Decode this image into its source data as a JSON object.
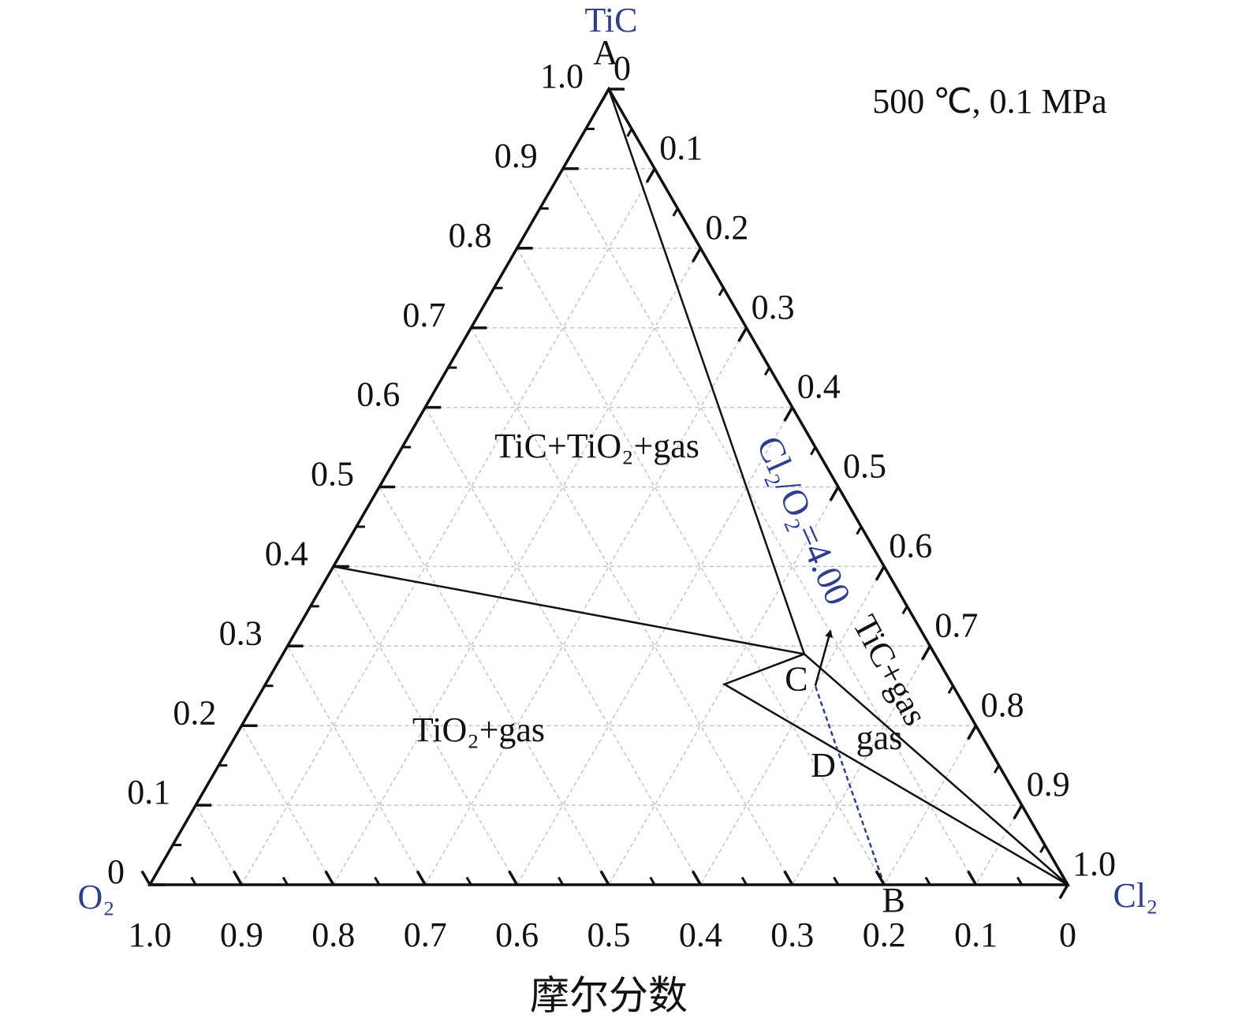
{
  "chart_data": {
    "type": "ternary",
    "annotation": "500 ℃, 0.1 MPa",
    "axis_title": "摩尔分数",
    "vertices": [
      {
        "label": "TiC",
        "ticks": [
          0,
          0.1,
          0.2,
          0.3,
          0.4,
          0.5,
          0.6,
          0.7,
          0.8,
          0.9,
          {
            "value": 1,
            "label": "1.0"
          }
        ]
      },
      {
        "label": "O₂",
        "ticks": [
          {
            "value": 1,
            "label": "1.0"
          },
          0.9,
          0.8,
          0.7,
          0.6,
          0.5,
          0.4,
          0.3,
          0.2,
          0.1,
          0
        ]
      },
      {
        "label": "Cl₂",
        "ticks": [
          0,
          0.1,
          0.2,
          0.3,
          0.4,
          0.5,
          0.6,
          0.7,
          0.8,
          0.9,
          {
            "value": 1,
            "label": "1.0"
          }
        ]
      }
    ],
    "grid": true,
    "points": [
      {
        "label": "A",
        "at": [
          1,
          0,
          0
        ]
      },
      {
        "label": "B",
        "at": [
          0,
          0.2,
          0.8
        ]
      },
      {
        "label": "C",
        "at": [
          0.29,
          0.142,
          0.568
        ]
      },
      {
        "label": "D",
        "at": [
          0.146,
          0.171,
          0.683
        ]
      }
    ],
    "boundaries": [
      {
        "color": "#111111",
        "points": [
          [
            1,
            0,
            0
          ],
          [
            0.29,
            0.142,
            0.568
          ]
        ]
      },
      {
        "color": "#111111",
        "points": [
          [
            0.4,
            0.6,
            0
          ],
          [
            0.29,
            0.142,
            0.568
          ],
          [
            0,
            0,
            1
          ]
        ]
      },
      {
        "color": "#111111",
        "points": [
          [
            0.29,
            0.142,
            0.568
          ],
          [
            0.252,
            0.248,
            0.5
          ],
          [
            0,
            0,
            1
          ]
        ]
      },
      {
        "color": "#2e3f8f",
        "dashed": true,
        "points": [
          [
            0,
            0.2,
            0.8
          ],
          [
            0.25,
            0.15,
            0.6
          ]
        ]
      }
    ],
    "arrow": {
      "color": "#111111",
      "from": [
        0.25,
        0.15,
        0.6
      ],
      "to": [
        0.319,
        0.099,
        0.582
      ]
    },
    "ratio_label": "Cl₂/O₂=4.00",
    "regions": [
      "TiC+TiO₂+gas",
      "TiO₂+gas",
      "TiC+gas",
      "gas"
    ],
    "label_color": "#2e3f8f"
  }
}
